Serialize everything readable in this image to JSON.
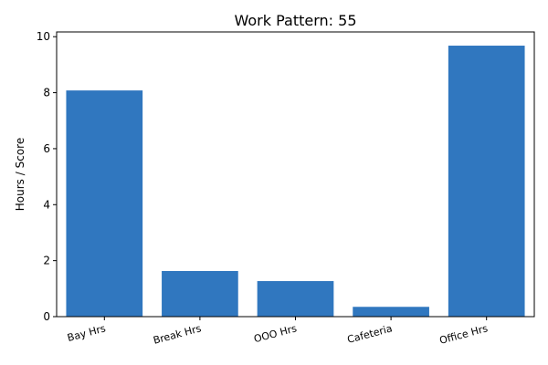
{
  "chart_data": {
    "type": "bar",
    "title": "Work Pattern: 55",
    "xlabel": "",
    "ylabel": "Hours / Score",
    "categories": [
      "Bay Hrs",
      "Break Hrs",
      "OOO Hrs",
      "Cafeteria",
      "Office Hrs"
    ],
    "values": [
      8.08,
      1.63,
      1.27,
      0.35,
      9.68
    ],
    "ylim": [
      0,
      10.17
    ],
    "yticks": [
      0,
      2,
      4,
      6,
      8,
      10
    ],
    "ytick_labels": [
      "0",
      "2",
      "4",
      "6",
      "8",
      "10"
    ],
    "bar_color": "#3077bf",
    "grid": false,
    "legend": "none"
  }
}
